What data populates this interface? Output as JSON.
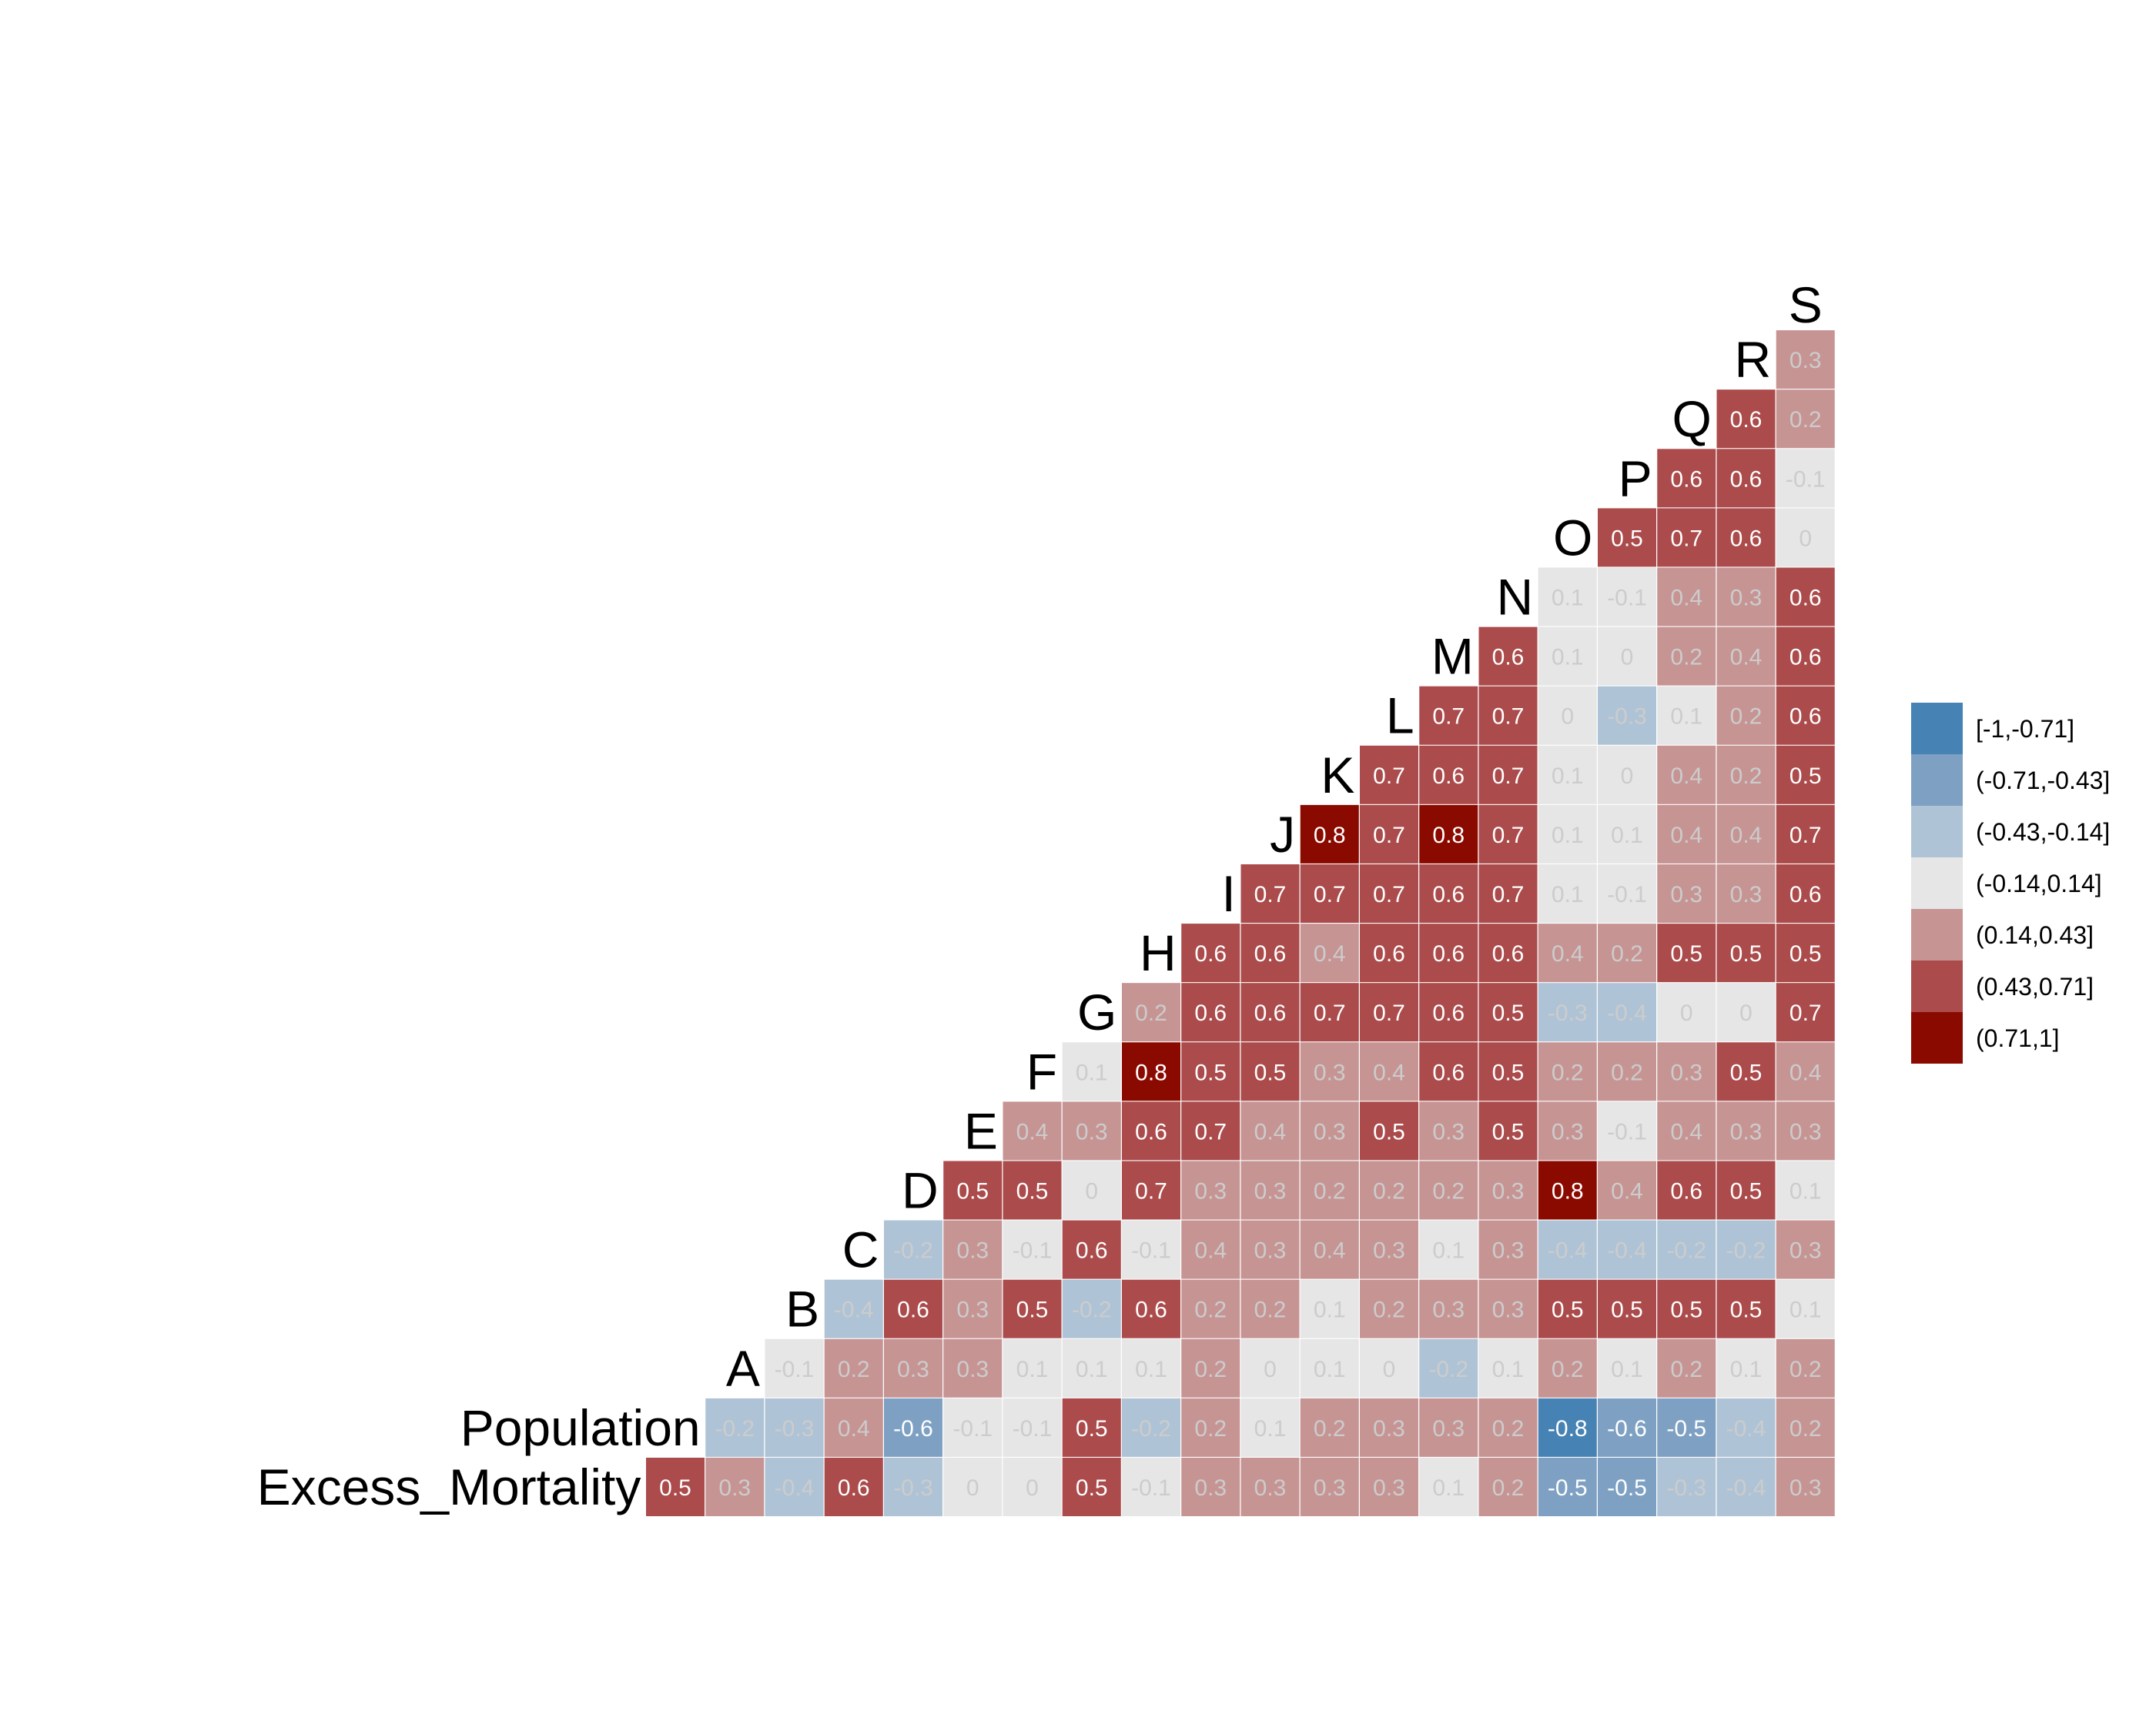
{
  "chart_data": {
    "type": "heatmap",
    "variables": [
      "Excess_Mortality",
      "Population",
      "A",
      "B",
      "C",
      "D",
      "E",
      "F",
      "G",
      "H",
      "I",
      "J",
      "K",
      "L",
      "M",
      "N",
      "O",
      "P",
      "Q",
      "R",
      "S"
    ],
    "columns": [
      "Excess_Mortality",
      "Population",
      "A",
      "B",
      "C",
      "D",
      "E",
      "F",
      "G",
      "H",
      "I",
      "J",
      "K",
      "L",
      "M",
      "N",
      "O",
      "P",
      "Q",
      "R",
      "S"
    ],
    "correlations": [
      [
        "0.5",
        "0.3",
        "-0.4",
        "0.6",
        "-0.3",
        "0",
        "0",
        "0.5",
        "-0.1",
        "0.3",
        "0.3",
        "0.3",
        "0.3",
        "0.1",
        "0.2",
        "-0.5",
        "-0.5",
        "-0.3",
        "-0.4",
        "0.3"
      ],
      [
        "-0.2",
        "-0.3",
        "0.4",
        "-0.6",
        "-0.1",
        "-0.1",
        "0.5",
        "-0.2",
        "0.2",
        "0.1",
        "0.2",
        "0.3",
        "0.3",
        "0.2",
        "-0.8",
        "-0.6",
        "-0.5",
        "-0.4",
        "0.2"
      ],
      [
        "-0.1",
        "0.2",
        "0.3",
        "0.3",
        "0.1",
        "0.1",
        "0.1",
        "0.2",
        "0",
        "0.1",
        "0",
        "-0.2",
        "0.1",
        "0.2",
        "0.1",
        "0.2",
        "0.1",
        "0.2"
      ],
      [
        "-0.4",
        "0.6",
        "0.3",
        "0.5",
        "-0.2",
        "0.6",
        "0.2",
        "0.2",
        "0.1",
        "0.2",
        "0.3",
        "0.3",
        "0.5",
        "0.5",
        "0.5",
        "0.5",
        "0.1"
      ],
      [
        "-0.2",
        "0.3",
        "-0.1",
        "0.6",
        "-0.1",
        "0.4",
        "0.3",
        "0.4",
        "0.3",
        "0.1",
        "0.3",
        "-0.4",
        "-0.4",
        "-0.2",
        "-0.2",
        "0.3"
      ],
      [
        "0.5",
        "0.5",
        "0",
        "0.7",
        "0.3",
        "0.3",
        "0.2",
        "0.2",
        "0.2",
        "0.3",
        "0.8",
        "0.4",
        "0.6",
        "0.5",
        "0.1"
      ],
      [
        "0.4",
        "0.3",
        "0.6",
        "0.7",
        "0.4",
        "0.3",
        "0.5",
        "0.3",
        "0.5",
        "0.3",
        "-0.1",
        "0.4",
        "0.3",
        "0.3"
      ],
      [
        "0.1",
        "0.8",
        "0.5",
        "0.5",
        "0.3",
        "0.4",
        "0.6",
        "0.5",
        "0.2",
        "0.2",
        "0.3",
        "0.5",
        "0.4"
      ],
      [
        "0.2",
        "0.6",
        "0.6",
        "0.7",
        "0.7",
        "0.6",
        "0.5",
        "-0.3",
        "-0.4",
        "0",
        "0",
        "0.7"
      ],
      [
        "0.6",
        "0.6",
        "0.4",
        "0.6",
        "0.6",
        "0.6",
        "0.4",
        "0.2",
        "0.5",
        "0.5",
        "0.5"
      ],
      [
        "0.7",
        "0.7",
        "0.7",
        "0.6",
        "0.7",
        "0.1",
        "-0.1",
        "0.3",
        "0.3",
        "0.6"
      ],
      [
        "0.8",
        "0.7",
        "0.8",
        "0.7",
        "0.1",
        "0.1",
        "0.4",
        "0.4",
        "0.7"
      ],
      [
        "0.7",
        "0.6",
        "0.7",
        "0.1",
        "0",
        "0.4",
        "0.2",
        "0.5"
      ],
      [
        "0.7",
        "0.7",
        "0",
        "-0.3",
        "0.1",
        "0.2",
        "0.6"
      ],
      [
        "0.6",
        "0.1",
        "0",
        "0.2",
        "0.4",
        "0.6"
      ],
      [
        "0.1",
        "-0.1",
        "0.4",
        "0.3",
        "0.6"
      ],
      [
        "0.5",
        "0.7",
        "0.6",
        "0"
      ],
      [
        "0.6",
        "0.6",
        "-0.1"
      ],
      [
        "0.6",
        "0.2"
      ],
      [
        "0.3"
      ]
    ],
    "legend": {
      "position": "right",
      "bins": [
        {
          "label": "[-1,-0.71]",
          "color": "#4682b4"
        },
        {
          "label": "(-0.71,-0.43]",
          "color": "#7ea1c3"
        },
        {
          "label": "(-0.43,-0.14]",
          "color": "#afc3d6"
        },
        {
          "label": "(-0.14,0.14]",
          "color": "#e6e6e6"
        },
        {
          "label": "(0.14,0.43]",
          "color": "#c79494"
        },
        {
          "label": "(0.43,0.71]",
          "color": "#ab4b4b"
        },
        {
          "label": "(0.71,1]",
          "color": "#8b0a00"
        }
      ]
    },
    "label_colors": {
      "light": "#ffffff",
      "muted": "#cccccc"
    }
  }
}
